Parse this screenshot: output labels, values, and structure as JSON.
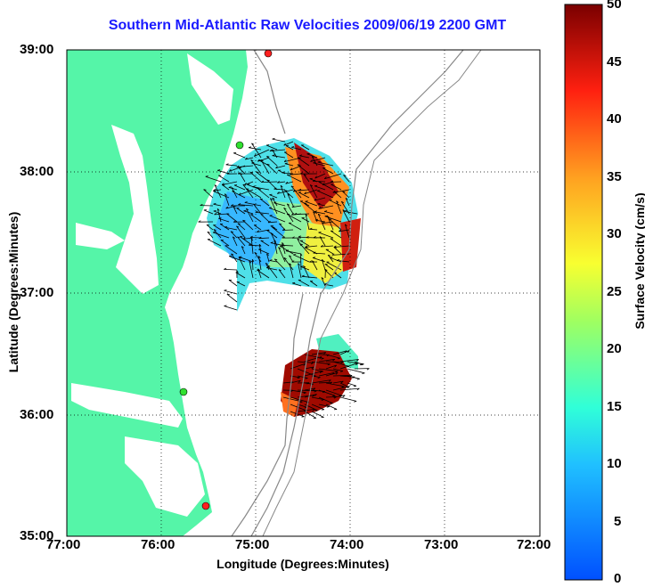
{
  "title": "Southern Mid-Atlantic Raw Velocities 2009/06/19 2200 GMT",
  "axes": {
    "xlabel": "Longitude (Degrees:Minutes)",
    "ylabel": "Latitude (Degrees:Minutes)",
    "xticks": [
      "77:00",
      "76:00",
      "75:00",
      "74:00",
      "73:00",
      "72:00"
    ],
    "yticks": [
      "39:00",
      "38:00",
      "37:00",
      "36:00",
      "35:00"
    ]
  },
  "colorbar": {
    "label": "Surface Velocity (cm/s)",
    "ticks": [
      "50",
      "45",
      "40",
      "35",
      "30",
      "25",
      "20",
      "15",
      "10",
      "5",
      "0"
    ]
  },
  "colors": {
    "land": "#55f5a8",
    "title": "#1a1aff",
    "bathymetry": "#888888",
    "station": "#ff2020",
    "station_alt": "#30e030"
  }
}
